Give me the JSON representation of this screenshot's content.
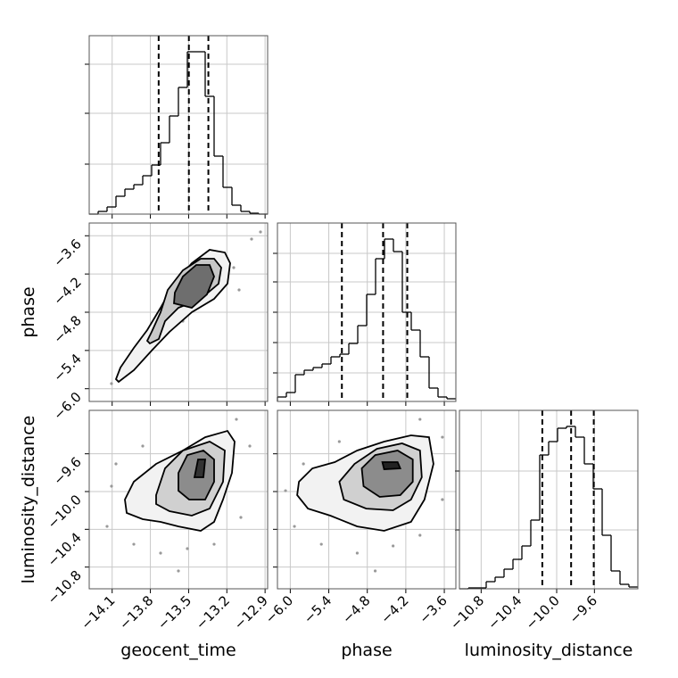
{
  "chart_data": [
    {
      "type": "histogram",
      "bins": [
        -14.28,
        -14.21,
        -14.14,
        -14.07,
        -14.0,
        -13.93,
        -13.86,
        -13.79,
        -13.72,
        -13.65,
        -13.58,
        -13.51,
        -13.44,
        -13.37,
        -13.3,
        -13.23,
        -13.16,
        -13.09,
        -13.02,
        -12.95,
        -12.88
      ],
      "counts": [
        0,
        3,
        8,
        20,
        28,
        33,
        43,
        55,
        80,
        110,
        142,
        182,
        182,
        132,
        65,
        30,
        10,
        3,
        1,
        0
      ],
      "quantiles": [
        -13.735,
        -13.498,
        -13.345
      ],
      "color": "#000000",
      "xlim": [
        -14.28,
        -12.88
      ],
      "xticks": [
        -14.1,
        -13.8,
        -13.5,
        -13.2,
        -12.9
      ],
      "ylim": [
        0,
        200
      ],
      "yticks": [
        56,
        113,
        168
      ],
      "grid": true
    },
    {
      "type": "histogram",
      "bins": [
        -6.2,
        -6.061,
        -5.922,
        -5.783,
        -5.644,
        -5.505,
        -5.366,
        -5.227,
        -5.088,
        -4.949,
        -4.81,
        -4.671,
        -4.532,
        -4.393,
        -4.254,
        -4.115,
        -3.976,
        -3.837,
        -3.698,
        -3.559,
        -3.42
      ],
      "counts": [
        5,
        10,
        30,
        35,
        38,
        42,
        50,
        53,
        65,
        85,
        120,
        160,
        182,
        168,
        100,
        80,
        50,
        15,
        5,
        3
      ],
      "quantiles": [
        -5.196,
        -4.554,
        -4.177
      ],
      "color": "#000000",
      "xlim": [
        -6.2,
        -3.42
      ],
      "xticks": [
        -6.0,
        -5.4,
        -4.8,
        -4.2,
        -3.6
      ],
      "ylim": [
        0,
        200
      ],
      "yticks": [
        32,
        66,
        100,
        134,
        166
      ],
      "grid": true
    },
    {
      "type": "histogram",
      "bins": [
        -11.03,
        -10.9355,
        -10.841,
        -10.7465,
        -10.652,
        -10.5575,
        -10.463,
        -10.3685,
        -10.274,
        -10.1795,
        -10.085,
        -9.9905,
        -9.896,
        -9.8015,
        -9.707,
        -9.6125,
        -9.518,
        -9.4235,
        -9.329,
        -9.2345,
        -9.14
      ],
      "counts": [
        0,
        1,
        1,
        8,
        13,
        22,
        33,
        48,
        77,
        150,
        165,
        180,
        182,
        170,
        140,
        112,
        60,
        20,
        5,
        2
      ],
      "quantiles": [
        -10.152,
        -9.847,
        -9.607
      ],
      "color": "#000000",
      "xlabel": "luminosity_distance",
      "xlim": [
        -11.03,
        -9.14
      ],
      "xticks": [
        {
          "value": -10.8,
          "label": "−10.8"
        },
        {
          "value": -10.4,
          "label": "−10.4"
        },
        {
          "value": -10.0,
          "label": "−10.0"
        },
        {
          "value": -9.6,
          "label": "−9.6"
        }
      ],
      "ylim": [
        0,
        200
      ],
      "yticks": [
        66,
        132
      ],
      "grid": true
    },
    {
      "type": "contour",
      "ylabel": "phase",
      "color": "#000000",
      "point_color": "#999999",
      "xlim": [
        -14.28,
        -12.88
      ],
      "xticks": [
        -14.1,
        -13.8,
        -13.5,
        -13.2,
        -12.9
      ],
      "ylim": [
        -6.2,
        -3.4
      ],
      "yticks": [
        {
          "value": -3.6,
          "label": "−3.6"
        },
        {
          "value": -4.2,
          "label": "−4.2"
        },
        {
          "value": -4.8,
          "label": "−4.8"
        },
        {
          "value": -5.4,
          "label": "−5.4"
        },
        {
          "value": -6.0,
          "label": "−6.0"
        }
      ],
      "grid": true,
      "points": {
        "x": [
          -14.105,
          -14.0,
          -13.86,
          -13.755,
          -13.545,
          -13.356,
          -13.146,
          -13.006,
          -13.916,
          -13.104,
          -13.664,
          -12.936
        ],
        "y": [
          -5.92,
          -5.752,
          -5.472,
          -5.29,
          -4.94,
          -4.632,
          -4.1,
          -3.652,
          -5.612,
          -4.45,
          -4.688,
          -3.54
        ]
      },
      "contours": [
        {
          "fill": "#f2f2f2",
          "x": [
            -14.049,
            -13.93,
            -13.79,
            -13.65,
            -13.475,
            -13.3,
            -13.195,
            -13.174,
            -13.216,
            -13.335,
            -13.475,
            -13.615,
            -13.72,
            -13.825,
            -13.93,
            -14.035,
            -14.07
          ],
          "y": [
            -5.892,
            -5.71,
            -5.402,
            -5.108,
            -4.8,
            -4.59,
            -4.352,
            -4.03,
            -3.862,
            -3.82,
            -4.03,
            -4.352,
            -4.73,
            -5.08,
            -5.36,
            -5.668,
            -5.85
          ]
        },
        {
          "fill": "#c8c8c8",
          "x": [
            -13.804,
            -13.734,
            -13.685,
            -13.58,
            -13.405,
            -13.265,
            -13.244,
            -13.3,
            -13.405,
            -13.545,
            -13.664,
            -13.72,
            -13.79,
            -13.825
          ],
          "y": [
            -5.29,
            -5.22,
            -4.94,
            -4.73,
            -4.59,
            -4.352,
            -4.1,
            -3.96,
            -3.96,
            -4.142,
            -4.45,
            -4.8,
            -5.108,
            -5.248
          ]
        },
        {
          "fill": "#6e6e6e",
          "x": [
            -13.615,
            -13.475,
            -13.356,
            -13.3,
            -13.335,
            -13.44,
            -13.545,
            -13.608
          ],
          "y": [
            -4.66,
            -4.73,
            -4.52,
            -4.24,
            -4.058,
            -4.058,
            -4.24,
            -4.492
          ]
        }
      ]
    },
    {
      "type": "contour",
      "xlabel": "geocent_time",
      "ylabel": "luminosity_distance",
      "color": "#000000",
      "point_color": "#999999",
      "xlim": [
        -14.28,
        -12.88
      ],
      "xticks": [
        {
          "value": -14.1,
          "label": "−14.1"
        },
        {
          "value": -13.8,
          "label": "−13.8"
        },
        {
          "value": -13.5,
          "label": "−13.5"
        },
        {
          "value": -13.2,
          "label": "−13.2"
        },
        {
          "value": -12.9,
          "label": "−12.9"
        }
      ],
      "ylim": [
        -11.03,
        -9.14
      ],
      "yticks": [
        {
          "value": -9.6,
          "label": "−9.6"
        },
        {
          "value": -10.0,
          "label": "−10.0"
        },
        {
          "value": -10.4,
          "label": "−10.4"
        },
        {
          "value": -10.8,
          "label": "−10.8"
        }
      ],
      "grid": true,
      "points": {
        "x": [
          -14.14,
          -14.07,
          -13.93,
          -13.72,
          -13.51,
          -13.3,
          -13.09,
          -13.02,
          -13.86,
          -14.105,
          -13.125,
          -13.58
        ],
        "y": [
          -10.369,
          -9.707,
          -10.558,
          -10.652,
          -10.605,
          -10.558,
          -10.274,
          -9.518,
          -9.518,
          -9.943,
          -9.235,
          -10.841
        ]
      },
      "contours": [
        {
          "fill": "#f2f2f2",
          "x": [
            -14.0,
            -13.93,
            -13.755,
            -13.545,
            -13.37,
            -13.195,
            -13.139,
            -13.16,
            -13.23,
            -13.3,
            -13.405,
            -13.58,
            -13.72,
            -13.86,
            -13.986
          ],
          "y": [
            -10.085,
            -9.896,
            -9.707,
            -9.565,
            -9.424,
            -9.357,
            -9.471,
            -9.802,
            -10.085,
            -10.321,
            -10.416,
            -10.369,
            -10.321,
            -10.293,
            -10.227
          ]
        },
        {
          "fill": "#d0d0d0",
          "x": [
            -13.755,
            -13.685,
            -13.545,
            -13.335,
            -13.216,
            -13.23,
            -13.335,
            -13.475,
            -13.65,
            -13.755
          ],
          "y": [
            -10.038,
            -9.754,
            -9.565,
            -9.471,
            -9.565,
            -9.896,
            -10.18,
            -10.255,
            -10.208,
            -10.132
          ]
        },
        {
          "fill": "#8c8c8c",
          "x": [
            -13.58,
            -13.51,
            -13.384,
            -13.3,
            -13.3,
            -13.37,
            -13.496,
            -13.58
          ],
          "y": [
            -9.802,
            -9.613,
            -9.565,
            -9.66,
            -9.896,
            -10.085,
            -10.085,
            -9.991
          ]
        },
        {
          "fill": "#333333",
          "x": [
            -13.454,
            -13.426,
            -13.37,
            -13.384
          ],
          "y": [
            -9.849,
            -9.66,
            -9.66,
            -9.849
          ]
        }
      ]
    },
    {
      "type": "contour",
      "xlabel": "phase",
      "color": "#000000",
      "point_color": "#999999",
      "xlim": [
        -6.2,
        -3.42
      ],
      "xticks": [
        {
          "value": -6.0,
          "label": "−6.0"
        },
        {
          "value": -5.4,
          "label": "−5.4"
        },
        {
          "value": -4.8,
          "label": "−4.8"
        },
        {
          "value": -4.2,
          "label": "−4.2"
        },
        {
          "value": -3.6,
          "label": "−3.6"
        }
      ],
      "ylim": [
        -11.03,
        -9.14
      ],
      "yticks": [
        -9.6,
        -10.0,
        -10.4,
        -10.8
      ],
      "grid": true,
      "points": {
        "x": [
          -5.935,
          -5.795,
          -5.516,
          -4.957,
          -4.398,
          -3.979,
          -3.63,
          -3.63,
          -5.236,
          -6.074,
          -3.979,
          -4.677
        ],
        "y": [
          -10.369,
          -9.707,
          -10.558,
          -10.652,
          -10.576,
          -10.463,
          -10.085,
          -9.424,
          -9.471,
          -9.991,
          -9.235,
          -10.841
        ]
      },
      "contours": [
        {
          "fill": "#f2f2f2",
          "x": [
            -5.865,
            -5.655,
            -5.306,
            -4.957,
            -4.538,
            -4.119,
            -3.839,
            -3.769,
            -3.909,
            -4.119,
            -4.538,
            -4.957,
            -5.376,
            -5.725,
            -5.893
          ],
          "y": [
            -9.896,
            -9.754,
            -9.688,
            -9.565,
            -9.471,
            -9.405,
            -9.424,
            -9.707,
            -10.085,
            -10.321,
            -10.416,
            -10.369,
            -10.255,
            -10.18,
            -10.038
          ]
        },
        {
          "fill": "#d0d0d0",
          "x": [
            -5.236,
            -4.999,
            -4.65,
            -4.258,
            -3.979,
            -3.951,
            -4.119,
            -4.398,
            -4.817,
            -5.166
          ],
          "y": [
            -9.896,
            -9.707,
            -9.547,
            -9.49,
            -9.565,
            -9.849,
            -10.085,
            -10.198,
            -10.18,
            -10.085
          ]
        },
        {
          "fill": "#8c8c8c",
          "x": [
            -4.887,
            -4.677,
            -4.328,
            -4.091,
            -4.091,
            -4.286,
            -4.607,
            -4.859
          ],
          "y": [
            -9.754,
            -9.613,
            -9.565,
            -9.66,
            -9.896,
            -10.038,
            -10.057,
            -9.943
          ]
        },
        {
          "fill": "#222222",
          "x": [
            -4.566,
            -4.328,
            -4.286,
            -4.537
          ],
          "y": [
            -9.688,
            -9.688,
            -9.754,
            -9.764
          ]
        }
      ]
    }
  ]
}
